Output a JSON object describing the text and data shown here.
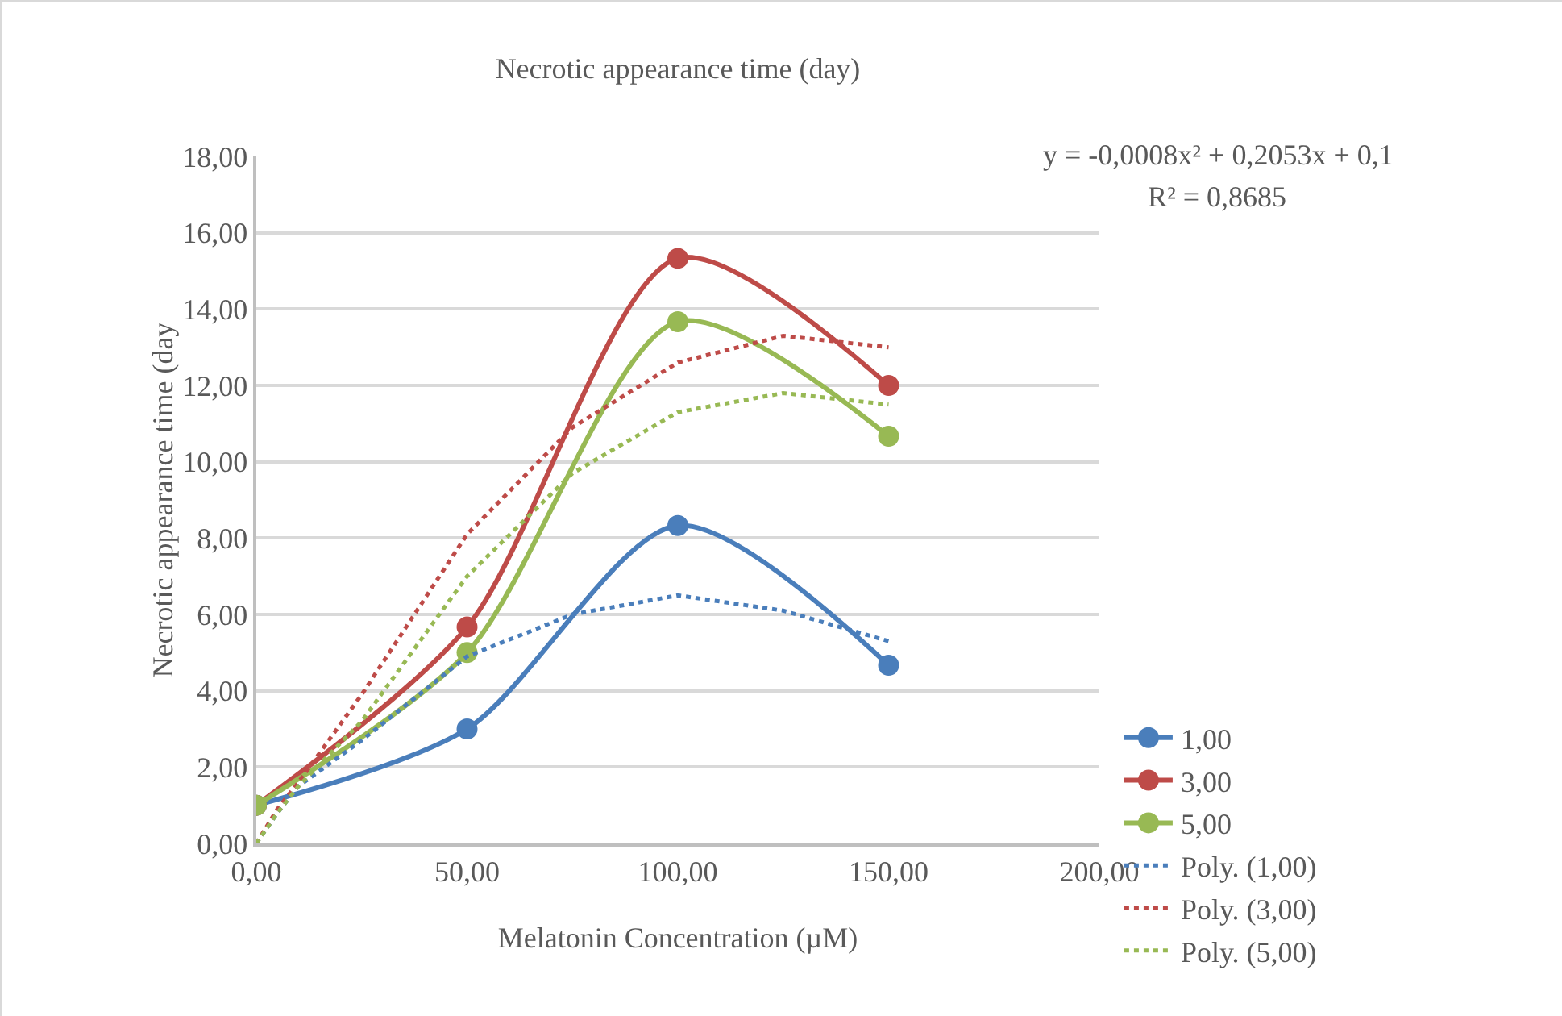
{
  "chart_data": {
    "type": "line",
    "title": "Necrotic appearance time (day)",
    "xlabel": "Melatonin Concentration (µM)",
    "ylabel": "Necrotic appearance time (day",
    "xlim": [
      0,
      200
    ],
    "xticks": [
      {
        "value": 0,
        "label": "0,00"
      },
      {
        "value": 50,
        "label": "50,00"
      },
      {
        "value": 100,
        "label": "100,00"
      },
      {
        "value": 150,
        "label": "150,00"
      },
      {
        "value": 200,
        "label": "200,00"
      }
    ],
    "ylim": [
      0,
      18
    ],
    "yticks": [
      {
        "value": 0,
        "label": "0,00"
      },
      {
        "value": 2,
        "label": "2,00"
      },
      {
        "value": 4,
        "label": "4,00"
      },
      {
        "value": 6,
        "label": "6,00"
      },
      {
        "value": 8,
        "label": "8,00"
      },
      {
        "value": 10,
        "label": "10,00"
      },
      {
        "value": 12,
        "label": "12,00"
      },
      {
        "value": 14,
        "label": "14,00"
      },
      {
        "value": 16,
        "label": "16,00"
      },
      {
        "value": 18,
        "label": "18,00"
      }
    ],
    "grid": "y",
    "legend": "bottom right",
    "marker": "circle",
    "line_style": "solid",
    "annotations": [
      "y = -0,0008x² + 0,2053x + 0,1",
      "R² = 0,8685"
    ],
    "series": [
      {
        "name": "1,00",
        "color": "#4a7ebb",
        "x": [
          0,
          50,
          100,
          150
        ],
        "values": [
          1,
          3,
          8.33,
          4.67
        ]
      },
      {
        "name": "3,00",
        "color": "#be4b48",
        "x": [
          0,
          50,
          100,
          150
        ],
        "values": [
          1,
          5.67,
          15.33,
          12
        ]
      },
      {
        "name": "5,00",
        "color": "#98b954",
        "x": [
          0,
          50,
          100,
          150
        ],
        "values": [
          1,
          5,
          13.67,
          10.67
        ]
      },
      {
        "name": "Poly. (1,00)",
        "color": "#4a7ebb",
        "marker": "none",
        "line_style": "dotted",
        "x": [
          0,
          5,
          10,
          25,
          50,
          75,
          100,
          125,
          150
        ],
        "values": [
          0,
          0.8,
          1.5,
          2.7,
          4.9,
          6.0,
          6.5,
          6.1,
          5.3
        ]
      },
      {
        "name": "Poly. (3,00)",
        "color": "#be4b48",
        "marker": "none",
        "line_style": "dotted",
        "x": [
          0,
          5,
          10,
          25,
          50,
          75,
          100,
          125,
          150
        ],
        "values": [
          0,
          0.9,
          1.6,
          3.9,
          8.1,
          10.9,
          12.6,
          13.3,
          13.0
        ]
      },
      {
        "name": "Poly. (5,00)",
        "color": "#98b954",
        "marker": "none",
        "line_style": "dotted",
        "x": [
          0,
          5,
          10,
          25,
          50,
          75,
          100,
          125,
          150
        ],
        "values": [
          0,
          0.8,
          1.5,
          3.2,
          7.0,
          9.7,
          11.3,
          11.8,
          11.5
        ]
      }
    ]
  }
}
